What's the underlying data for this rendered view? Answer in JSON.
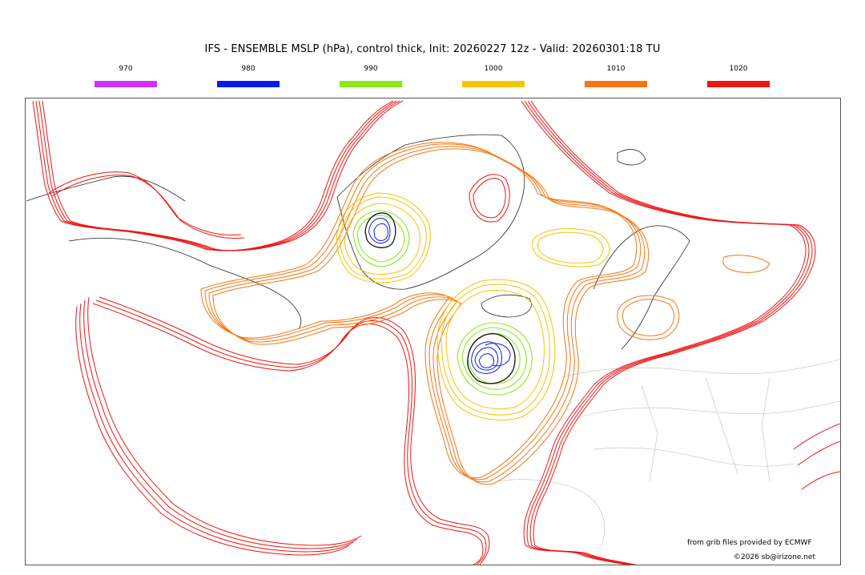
{
  "title": "IFS - ENSEMBLE MSLP (hPa), control thick, Init: 20260227 12z - Valid: 20260301:18 TU",
  "legend": [
    {
      "label": "970",
      "color": "#cc33ff"
    },
    {
      "label": "980",
      "color": "#0a1aee"
    },
    {
      "label": "990",
      "color": "#8ae81b"
    },
    {
      "label": "1000",
      "color": "#f7c300"
    },
    {
      "label": "1010",
      "color": "#f57511"
    },
    {
      "label": "1020",
      "color": "#ef1515"
    }
  ],
  "credits": {
    "source": "from grib files provided by ECMWF",
    "copyright": "©2026 sb@irizone.net"
  }
}
